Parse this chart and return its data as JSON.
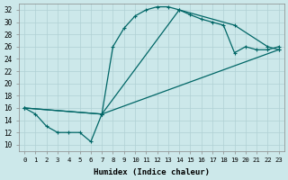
{
  "xlabel": "Humidex (Indice chaleur)",
  "ylabel": "",
  "bg_color": "#cce8ea",
  "grid_color": "#b0d0d4",
  "line_color": "#006666",
  "xlim": [
    -0.5,
    23.5
  ],
  "ylim": [
    9,
    33
  ],
  "xticks": [
    0,
    1,
    2,
    3,
    4,
    5,
    6,
    7,
    8,
    9,
    10,
    11,
    12,
    13,
    14,
    15,
    16,
    17,
    18,
    19,
    20,
    21,
    22,
    23
  ],
  "yticks": [
    10,
    12,
    14,
    16,
    18,
    20,
    22,
    24,
    26,
    28,
    30,
    32
  ],
  "series": [
    {
      "x": [
        0,
        1,
        2,
        3,
        4,
        5,
        6,
        7,
        8,
        9,
        10,
        11,
        12,
        13,
        14,
        15,
        16,
        17,
        18,
        19,
        20,
        21,
        22,
        23
      ],
      "y": [
        16,
        15,
        13,
        12,
        12,
        12,
        10.5,
        15,
        26,
        29,
        31,
        32,
        32.5,
        32.5,
        32,
        31.2,
        30.5,
        30,
        29.5,
        25,
        26,
        25.5,
        25.5,
        26
      ]
    },
    {
      "x": [
        0,
        7,
        14,
        19,
        22,
        23
      ],
      "y": [
        16,
        15,
        32,
        29.5,
        26,
        25.5
      ]
    },
    {
      "x": [
        0,
        7,
        23
      ],
      "y": [
        16,
        15,
        25.5
      ]
    }
  ]
}
